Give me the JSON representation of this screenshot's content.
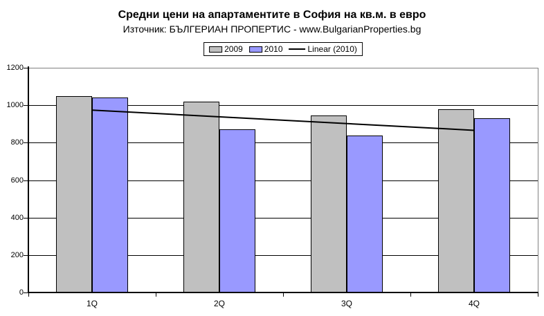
{
  "title": "Средни цени на апартаментите в София на кв.м. в евро",
  "subtitle": "Източник: БЪЛГЕРИАН ПРОПЕРТИС - www.BulgarianProperties.bg",
  "legend": {
    "items": [
      {
        "label": "2009",
        "color": "#c0c0c0",
        "type": "box"
      },
      {
        "label": "2010",
        "color": "#9999ff",
        "type": "box"
      },
      {
        "label": "Linear (2010)",
        "color": "#000000",
        "type": "line"
      }
    ]
  },
  "chart_data": {
    "type": "bar",
    "categories": [
      "1Q",
      "2Q",
      "3Q",
      "4Q"
    ],
    "series": [
      {
        "name": "2009",
        "color": "#c0c0c0",
        "values": [
          1048,
          1020,
          945,
          978
        ]
      },
      {
        "name": "2010",
        "color": "#9999ff",
        "values": [
          1040,
          870,
          840,
          930
        ]
      }
    ],
    "trendline": {
      "name": "Linear (2010)",
      "based_on_series": "2010",
      "color": "#000000",
      "endpoint_values": [
        974,
        866
      ]
    },
    "title": "Средни цени на апартаментите в София на кв.м. в евро",
    "subtitle": "Източник: БЪЛГЕРИАН ПРОПЕРТИС - www.BulgarianProperties.bg",
    "xlabel": "",
    "ylabel": "",
    "ylim": [
      0,
      1200
    ],
    "yticks": [
      0,
      200,
      400,
      600,
      800,
      1000,
      1200
    ],
    "grid": true,
    "legend_position": "top-center",
    "axis_color": "#000000",
    "plot_border_color": "#808080",
    "background_color": "#ffffff"
  }
}
